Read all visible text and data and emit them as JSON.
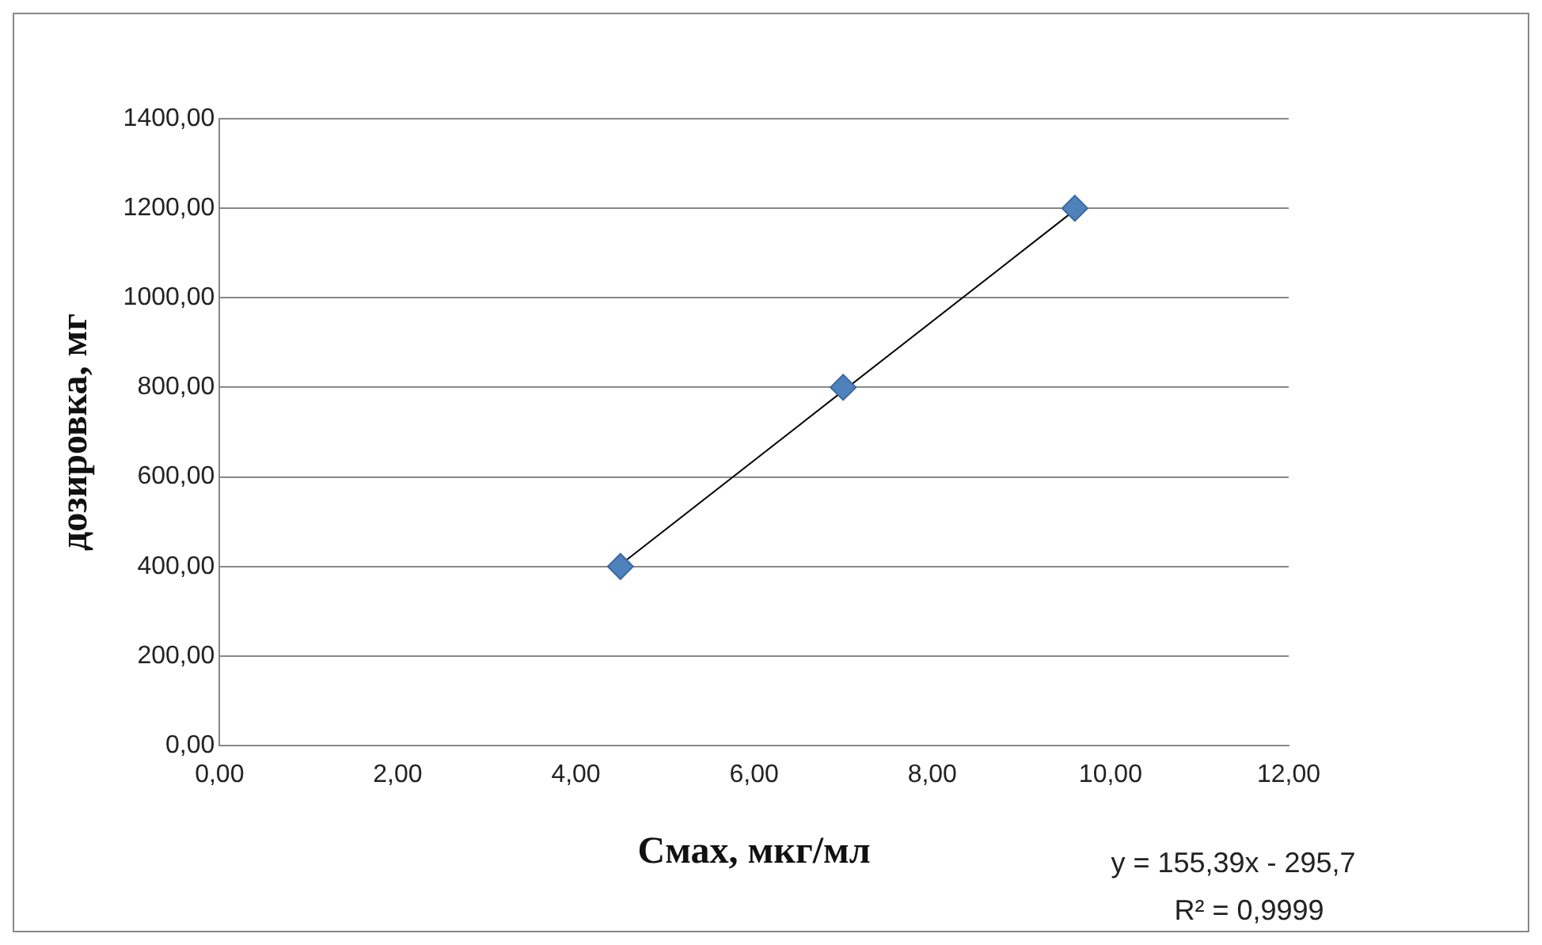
{
  "chart_data": {
    "type": "scatter",
    "xlabel": "Cмах, мкг/мл",
    "ylabel": "дозировка, мг",
    "xlim": [
      0,
      12
    ],
    "xticks": [
      {
        "value": 0,
        "label": "0,00"
      },
      {
        "value": 2,
        "label": "2,00"
      },
      {
        "value": 4,
        "label": "4,00"
      },
      {
        "value": 6,
        "label": "6,00"
      },
      {
        "value": 8,
        "label": "8,00"
      },
      {
        "value": 10,
        "label": "10,00"
      },
      {
        "value": 12,
        "label": "12,00"
      }
    ],
    "ylim": [
      0,
      1400
    ],
    "yticks": [
      {
        "value": 0,
        "label": "0,00"
      },
      {
        "value": 200,
        "label": "200,00"
      },
      {
        "value": 400,
        "label": "400,00"
      },
      {
        "value": 600,
        "label": "600,00"
      },
      {
        "value": 800,
        "label": "800,00"
      },
      {
        "value": 1000,
        "label": "1000,00"
      },
      {
        "value": 1200,
        "label": "1200,00"
      },
      {
        "value": 1400,
        "label": "1400,00"
      }
    ],
    "grid": "y",
    "series": [
      {
        "type": "scatter",
        "x": [
          4.5,
          7.0,
          9.6
        ],
        "values": [
          400,
          800,
          1200
        ],
        "color": "#4f81bd",
        "marker": "diamond"
      },
      {
        "type": "line",
        "x": [
          4.5,
          9.6
        ],
        "values": [
          404,
          1196
        ],
        "color": "#000000",
        "marker": "none",
        "line_style": "solid"
      }
    ],
    "annotations": [
      "y = 155,39x - 295,7",
      "R² = 0,9999"
    ]
  }
}
